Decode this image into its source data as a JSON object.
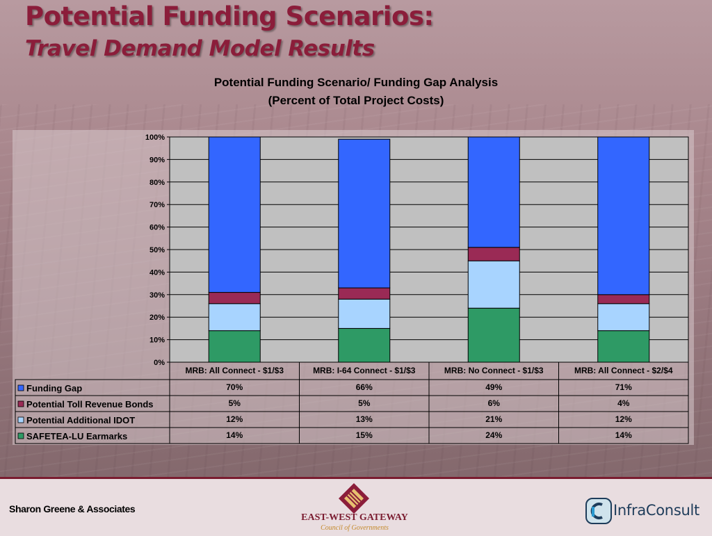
{
  "slide": {
    "title": "Potential Funding Scenarios:",
    "subtitle": "Travel Demand Model Results"
  },
  "chart_data": {
    "type": "bar",
    "stacked": true,
    "title": "Potential Funding Scenario/ Funding Gap Analysis",
    "subtitle": "(Percent of Total Project Costs)",
    "categories": [
      "MRB: All Connect - $1/$3",
      "MRB: I-64 Connect - $1/$3",
      "MRB: No Connect - $1/$3",
      "MRB: All Connect - $2/$4"
    ],
    "series": [
      {
        "name": "SAFETEA-LU Earmarks",
        "color": "#2e9a65",
        "values": [
          14,
          15,
          24,
          14
        ]
      },
      {
        "name": "Potential Additional IDOT",
        "color": "#a8d4ff",
        "values": [
          12,
          13,
          21,
          12
        ]
      },
      {
        "name": "Potential Toll Revenue Bonds",
        "color": "#9a2a55",
        "values": [
          5,
          5,
          6,
          4
        ]
      },
      {
        "name": "Funding Gap",
        "color": "#3366ff",
        "values": [
          70,
          66,
          49,
          71
        ]
      }
    ],
    "table_rows": [
      "Funding Gap",
      "Potential Toll Revenue Bonds",
      "Potential Additional IDOT",
      "SAFETEA-LU Earmarks"
    ],
    "ylim": [
      0,
      100
    ],
    "yticks": [
      "0%",
      "10%",
      "20%",
      "30%",
      "40%",
      "50%",
      "60%",
      "70%",
      "80%",
      "90%",
      "100%"
    ],
    "grid": true,
    "legend": "data table below chart"
  },
  "footer": {
    "left": "Sharon Greene & Associates",
    "center_name": "EAST-WEST GATEWAY",
    "center_sub": "Council of Governments",
    "right": "InfraConsult"
  }
}
